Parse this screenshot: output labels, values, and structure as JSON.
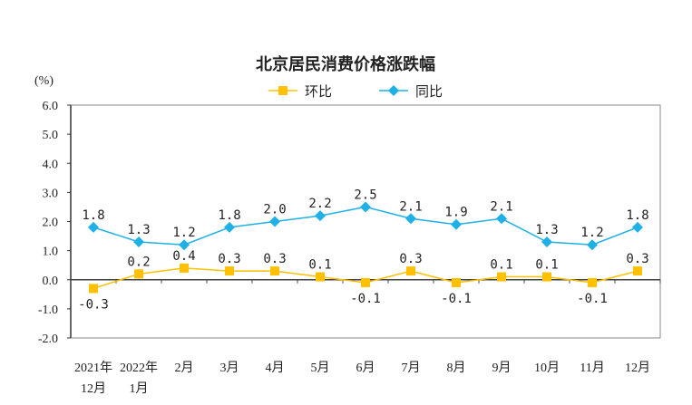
{
  "chart_data": {
    "type": "line",
    "title": "北京居民消费价格涨跌幅",
    "ylabel": "(%)",
    "xlabel": "",
    "ylim": [
      -2.0,
      6.0
    ],
    "yticks": [
      "6.0",
      "5.0",
      "4.0",
      "3.0",
      "2.0",
      "1.0",
      "0.0",
      "-1.0",
      "-2.0"
    ],
    "ytick_values": [
      6,
      5,
      4,
      3,
      2,
      1,
      0,
      -1,
      -2
    ],
    "categories": [
      [
        "2021年",
        "12月"
      ],
      [
        "2022年",
        "1月"
      ],
      [
        "2月"
      ],
      [
        "3月"
      ],
      [
        "4月"
      ],
      [
        "5月"
      ],
      [
        "6月"
      ],
      [
        "7月"
      ],
      [
        "8月"
      ],
      [
        "9月"
      ],
      [
        "10月"
      ],
      [
        "11月"
      ],
      [
        "12月"
      ]
    ],
    "legend_position": "top-center",
    "series": [
      {
        "name": "环比",
        "color": "#FFC000",
        "marker": "square",
        "values": [
          -0.3,
          0.2,
          0.4,
          0.3,
          0.3,
          0.1,
          -0.1,
          0.3,
          -0.1,
          0.1,
          0.1,
          -0.1,
          0.3
        ],
        "labels": [
          "-0.3",
          "0.2",
          "0.4",
          "0.3",
          "0.3",
          "0.1",
          "-0.1",
          "0.3",
          "-0.1",
          "0.1",
          "0.1",
          "-0.1",
          "0.3"
        ]
      },
      {
        "name": "同比",
        "color": "#1FB0E8",
        "marker": "diamond",
        "values": [
          1.8,
          1.3,
          1.2,
          1.8,
          2.0,
          2.2,
          2.5,
          2.1,
          1.9,
          2.1,
          1.3,
          1.2,
          1.8
        ],
        "labels": [
          "1.8",
          "1.3",
          "1.2",
          "1.8",
          "2.0",
          "2.2",
          "2.5",
          "2.1",
          "1.9",
          "2.1",
          "1.3",
          "1.2",
          "1.8"
        ]
      }
    ]
  }
}
